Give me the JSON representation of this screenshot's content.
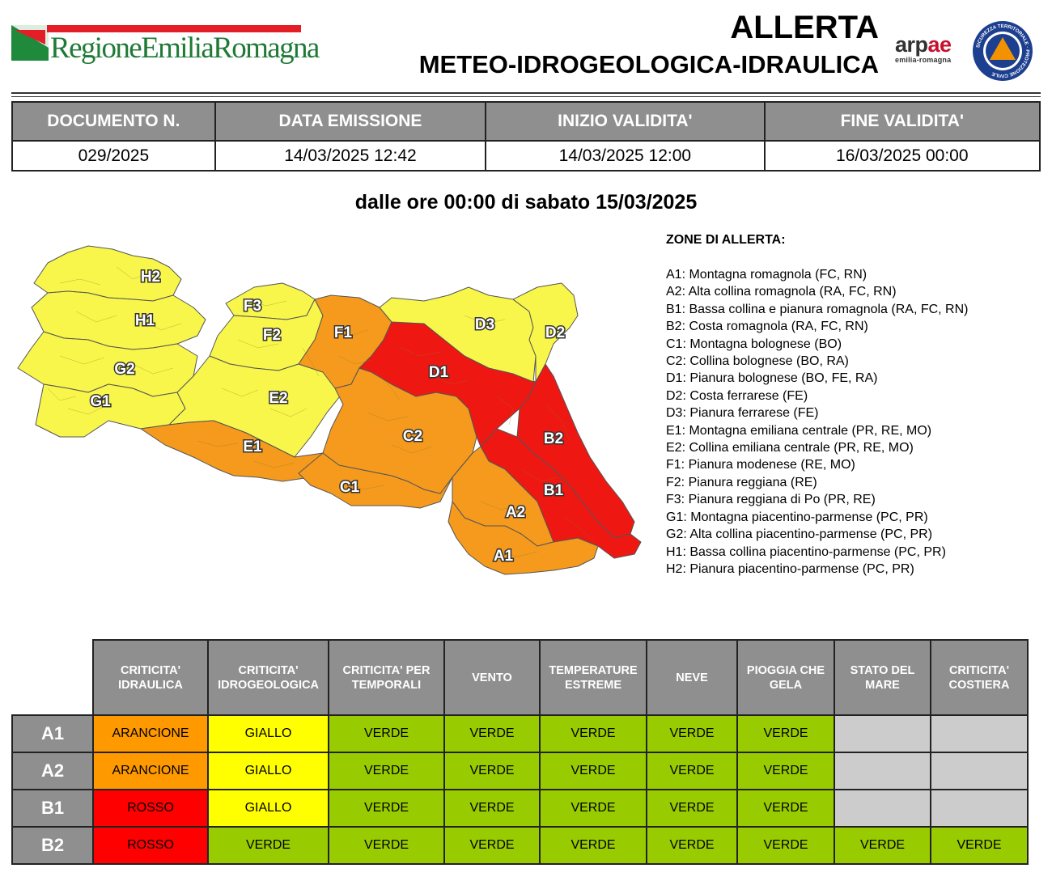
{
  "header": {
    "region_logo_text": "RegioneEmiliaRomagna",
    "title_line1": "ALLERTA",
    "title_line2": "METEO-IDROGEOLOGICA-IDRAULICA",
    "arpae_name": "arpae",
    "arpae_sub": "emilia-romagna",
    "civil_protection_ring_text": "SICUREZZA TERRITORIALE · PROTEZIONE CIVILE"
  },
  "document": {
    "headers": [
      "DOCUMENTO N.",
      "DATA EMISSIONE",
      "INIZIO VALIDITA'",
      "FINE VALIDITA'"
    ],
    "values": [
      "029/2025",
      "14/03/2025 12:42",
      "14/03/2025 12:00",
      "16/03/2025 00:00"
    ]
  },
  "validity_line": "dalle ore 00:00 di sabato 15/03/2025",
  "map": {
    "labels": [
      "H2",
      "H1",
      "G2",
      "G1",
      "F3",
      "F2",
      "F1",
      "E2",
      "E1",
      "C1",
      "C2",
      "D1",
      "D3",
      "D2",
      "B2",
      "B1",
      "A2",
      "A1"
    ],
    "zone_levels": {
      "H2": "GIALLO",
      "H1": "GIALLO",
      "G2": "GIALLO",
      "G1": "GIALLO",
      "F3": "GIALLO",
      "F2": "GIALLO",
      "E2": "GIALLO",
      "D3": "GIALLO",
      "D2": "GIALLO",
      "F1": "ARANCIONE",
      "E1": "ARANCIONE",
      "C1": "ARANCIONE",
      "C2": "ARANCIONE",
      "A1": "ARANCIONE",
      "A2": "ARANCIONE",
      "D1": "ROSSO",
      "B1": "ROSSO",
      "B2": "ROSSO"
    }
  },
  "zones": {
    "title": "ZONE DI ALLERTA:",
    "items": [
      "A1: Montagna romagnola (FC, RN)",
      "A2: Alta collina romagnola (RA, FC, RN)",
      "B1: Bassa collina e pianura romagnola (RA, FC, RN)",
      "B2: Costa romagnola (RA, FC, RN)",
      "C1: Montagna bolognese (BO)",
      "C2: Collina bolognese (BO, RA)",
      "D1: Pianura bolognese (BO, FE, RA)",
      "D2: Costa ferrarese (FE)",
      "D3: Pianura ferrarese (FE)",
      "E1: Montagna emiliana centrale (PR, RE, MO)",
      "E2: Collina emiliana centrale (PR, RE, MO)",
      "F1: Pianura modenese (RE, MO)",
      "F2: Pianura reggiana (RE)",
      "F3: Pianura reggiana di Po (PR, RE)",
      "G1: Montagna piacentino-parmense (PC, PR)",
      "G2: Alta collina piacentino-parmense (PC, PR)",
      "H1: Bassa collina piacentino-parmense (PC, PR)",
      "H2: Pianura piacentino-parmense (PC, PR)"
    ]
  },
  "risk_table": {
    "columns": [
      [
        "CRITICITA'",
        "IDRAULICA"
      ],
      [
        "CRITICITA'",
        "IDROGEOLOGICA"
      ],
      [
        "CRITICITA' PER",
        "TEMPORALI"
      ],
      [
        "VENTO"
      ],
      [
        "TEMPERATURE",
        "ESTREME"
      ],
      [
        "NEVE"
      ],
      [
        "PIOGGIA CHE",
        "GELA"
      ],
      [
        "STATO DEL",
        "MARE"
      ],
      [
        "CRITICITA'",
        "COSTIERA"
      ]
    ],
    "rows": [
      {
        "zone": "A1",
        "values": [
          "ARANCIONE",
          "GIALLO",
          "VERDE",
          "VERDE",
          "VERDE",
          "VERDE",
          "VERDE",
          "",
          ""
        ]
      },
      {
        "zone": "A2",
        "values": [
          "ARANCIONE",
          "GIALLO",
          "VERDE",
          "VERDE",
          "VERDE",
          "VERDE",
          "VERDE",
          "",
          ""
        ]
      },
      {
        "zone": "B1",
        "values": [
          "ROSSO",
          "GIALLO",
          "VERDE",
          "VERDE",
          "VERDE",
          "VERDE",
          "VERDE",
          "",
          ""
        ]
      },
      {
        "zone": "B2",
        "values": [
          "ROSSO",
          "VERDE",
          "VERDE",
          "VERDE",
          "VERDE",
          "VERDE",
          "VERDE",
          "VERDE",
          "VERDE"
        ]
      }
    ]
  },
  "level_colors": {
    "VERDE": "#99cc00",
    "GIALLO": "#ffff00",
    "ARANCIONE": "#ff9900",
    "ROSSO": "#ff0000",
    "NONE": "#cccccc"
  },
  "map_colors": {
    "GIALLO": "#f8f64a",
    "ARANCIONE": "#f59a1d",
    "ROSSO": "#ef1712"
  }
}
